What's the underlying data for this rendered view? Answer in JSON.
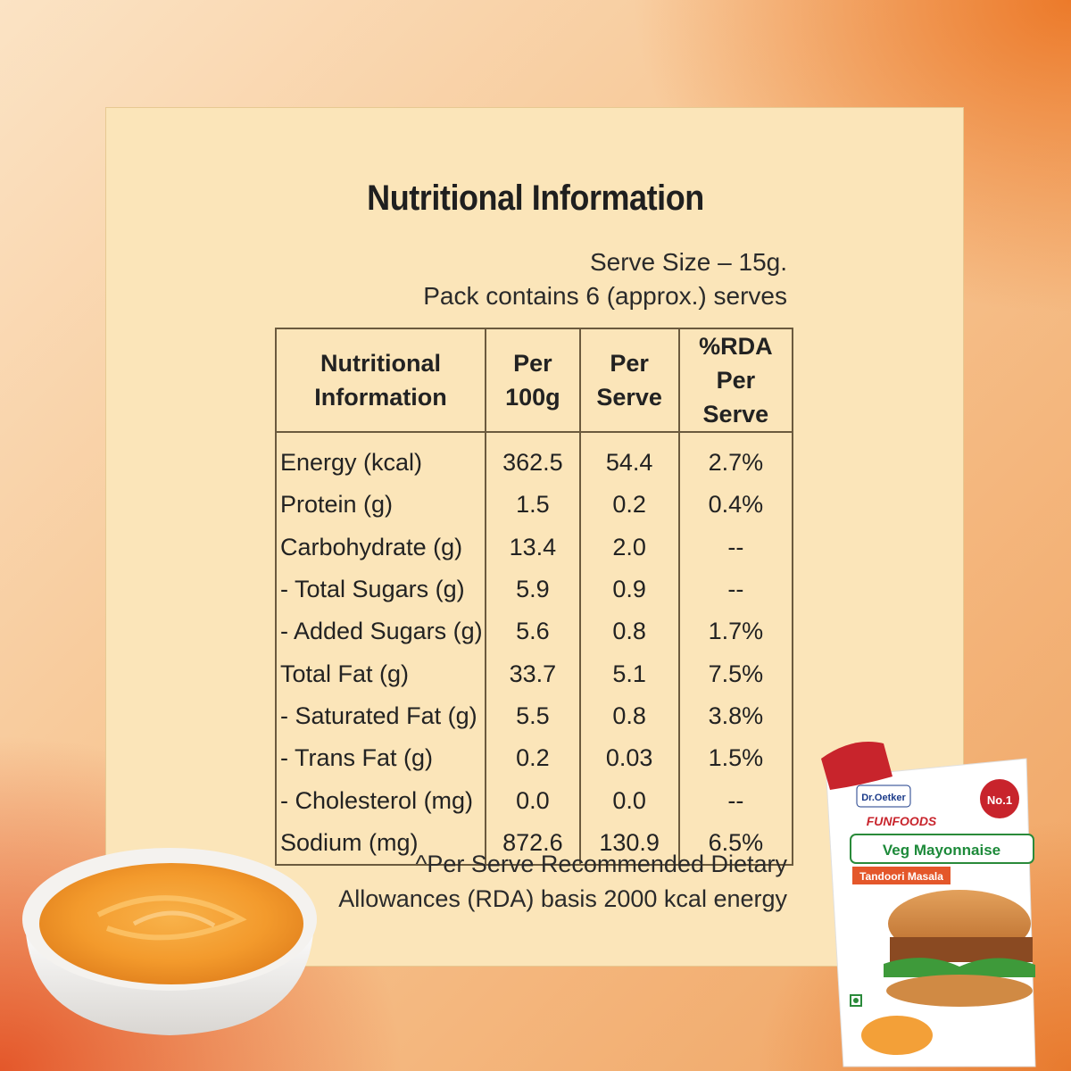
{
  "title": "Nutritional Information",
  "serve_size": "Serve Size – 15g.",
  "pack_contains": "Pack contains 6 (approx.) serves",
  "table": {
    "headers": [
      {
        "l1": "Nutritional",
        "l2": "Information"
      },
      {
        "l1": "Per",
        "l2": "100g"
      },
      {
        "l1": "Per",
        "l2": "Serve"
      },
      {
        "l1": "%RDA",
        "l2": "Per Serve"
      }
    ],
    "rows": [
      {
        "name": "Energy (kcal)",
        "per100g": "362.5",
        "perServe": "54.4",
        "rda": "2.7%"
      },
      {
        "name": "Protein (g)",
        "per100g": "1.5",
        "perServe": "0.2",
        "rda": "0.4%"
      },
      {
        "name": "Carbohydrate (g)",
        "per100g": "13.4",
        "perServe": "2.0",
        "rda": "--"
      },
      {
        "name": "- Total Sugars (g)",
        "per100g": "5.9",
        "perServe": "0.9",
        "rda": "--"
      },
      {
        "name": "- Added Sugars (g)",
        "per100g": "5.6",
        "perServe": "0.8",
        "rda": "1.7%"
      },
      {
        "name": "Total Fat (g)",
        "per100g": "33.7",
        "perServe": "5.1",
        "rda": "7.5%"
      },
      {
        "name": "- Saturated Fat (g)",
        "per100g": "5.5",
        "perServe": "0.8",
        "rda": "3.8%"
      },
      {
        "name": "- Trans Fat (g)",
        "per100g": "0.2",
        "perServe": "0.03",
        "rda": "1.5%"
      },
      {
        "name": "- Cholesterol (mg)",
        "per100g": "0.0",
        "perServe": "0.0",
        "rda": "--"
      },
      {
        "name": "Sodium (mg)",
        "per100g": "872.6",
        "perServe": "130.9",
        "rda": "6.5%"
      }
    ]
  },
  "footnote_1": "^Per Serve Recommended Dietary",
  "footnote_2": "Allowances (RDA) basis 2000 kcal energy",
  "product": {
    "brand": "Dr.Oetker",
    "sub_brand": "FUNFOODS",
    "badge": "No.1",
    "name": "Veg Mayonnaise",
    "variant": "Tandoori Masala"
  }
}
